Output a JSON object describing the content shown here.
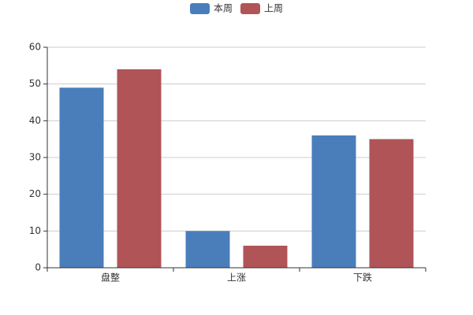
{
  "chart_data": {
    "type": "bar",
    "categories": [
      "盘整",
      "上涨",
      "下跌"
    ],
    "series": [
      {
        "name": "本周",
        "color": "#4a7ebb",
        "values": [
          49,
          10,
          36
        ]
      },
      {
        "name": "上周",
        "color": "#b05458",
        "values": [
          54,
          6,
          35
        ]
      }
    ],
    "ylim": [
      0,
      60
    ],
    "yticks": [
      0,
      10,
      20,
      30,
      40,
      50,
      60
    ],
    "grid": true,
    "legend": "top"
  }
}
